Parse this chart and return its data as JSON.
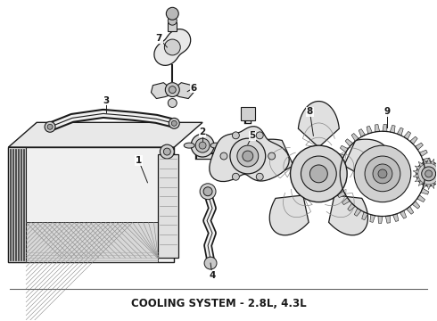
{
  "title": "COOLING SYSTEM - 2.8L, 4.3L",
  "bg_color": "#ffffff",
  "line_color": "#1a1a1a",
  "title_fontsize": 8.5,
  "title_fontweight": "bold",
  "fig_w": 4.9,
  "fig_h": 3.6,
  "dpi": 100
}
